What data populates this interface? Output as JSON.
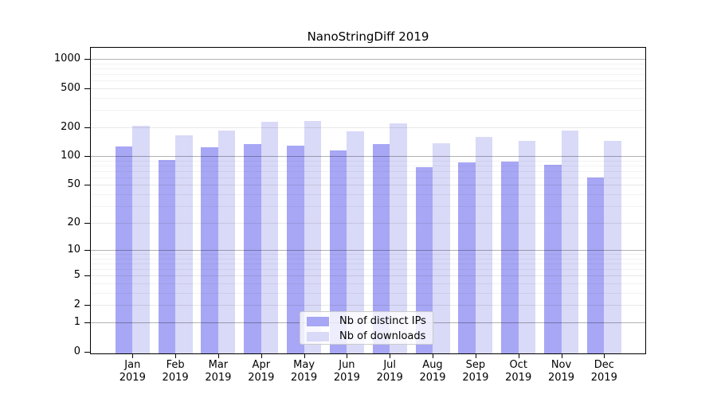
{
  "chart_data": {
    "type": "bar",
    "title": "NanoStringDiff 2019",
    "categories": [
      "Jan",
      "Feb",
      "Mar",
      "Apr",
      "May",
      "Jun",
      "Jul",
      "Aug",
      "Sep",
      "Oct",
      "Nov",
      "Dec"
    ],
    "category_year": "2019",
    "series": [
      {
        "name": "Nb of distinct IPs",
        "color": "#a7a7f5",
        "values": [
          126,
          92,
          124,
          133,
          128,
          115,
          134,
          77,
          86,
          87,
          82,
          60
        ]
      },
      {
        "name": "Nb of downloads",
        "color": "#d9d9f8",
        "values": [
          205,
          164,
          184,
          225,
          230,
          181,
          219,
          137,
          158,
          143,
          185,
          144
        ]
      }
    ],
    "yscale": "log1p",
    "ylim": [
      0,
      1000
    ],
    "yticks": [
      0,
      1,
      2,
      5,
      10,
      20,
      50,
      100,
      200,
      500,
      1000
    ],
    "minor_gridline_values": [
      3,
      4,
      6,
      7,
      8,
      9,
      30,
      40,
      60,
      70,
      80,
      90,
      300,
      400,
      600,
      700,
      800,
      900
    ],
    "emphasized_gridline_values": [
      1,
      10,
      100,
      1000
    ],
    "grid": "on",
    "legend_position": "lower center",
    "axis_color": "#000000"
  }
}
